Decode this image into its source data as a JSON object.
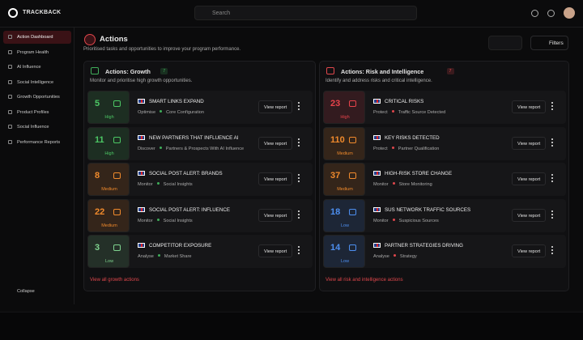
{
  "brand": "TRACKBACK",
  "search": {
    "placeholder": "Search"
  },
  "nav": {
    "items": [
      "Action Dashboard",
      "Program Health",
      "AI Influence",
      "Social Intelligence",
      "Growth Opportunities",
      "Product Profiles",
      "Social Influence",
      "Performance Reports"
    ],
    "active": 0,
    "collapse": "Collapse"
  },
  "header": {
    "title": "Actions",
    "subtitle": "Prioritised tasks and opportunities to improve your program performance.",
    "filters": "Filters"
  },
  "panels": [
    {
      "title": "Actions: Growth",
      "count": 7,
      "description": "Monitor and prioritise high growth opportunities.",
      "accent": "#3fae5a",
      "action": "View report",
      "footer": "View all growth actions",
      "items": [
        {
          "value": 5,
          "level": "High",
          "title": "SMART LINKS EXPAND",
          "category": "Optimise",
          "subcategory": "Core Configuration",
          "color": "#4cc764"
        },
        {
          "value": 11,
          "level": "High",
          "title": "NEW PARTNERS THAT INFLUENCE AI",
          "category": "Discover",
          "subcategory": "Partners & Prospects With AI Influence",
          "color": "#4cc764"
        },
        {
          "value": 8,
          "level": "Medium",
          "title": "SOCIAL POST ALERT: BRANDS",
          "category": "Monitor",
          "subcategory": "Social Insights",
          "color": "#f08a2c"
        },
        {
          "value": 22,
          "level": "Medium",
          "title": "SOCIAL POST ALERT: INFLUENCE",
          "category": "Monitor",
          "subcategory": "Social Insights",
          "color": "#f08a2c"
        },
        {
          "value": 3,
          "level": "Low",
          "title": "COMPETITOR EXPOSURE",
          "category": "Analyse",
          "subcategory": "Market Share",
          "color": "#7fd38f"
        }
      ]
    },
    {
      "title": "Actions: Risk and Intelligence",
      "count": 7,
      "description": "Identify and address risks and critical intelligence.",
      "accent": "#e0474c",
      "action": "View report",
      "footer": "View all risk and intelligence actions",
      "items": [
        {
          "value": 23,
          "level": "High",
          "title": "CRITICAL RISKS",
          "category": "Protect",
          "subcategory": "Traffic Source Detected",
          "color": "#e8434b"
        },
        {
          "value": 110,
          "level": "Medium",
          "title": "KEY RISKS DETECTED",
          "category": "Protect",
          "subcategory": "Partner Qualification",
          "color": "#f08a2c"
        },
        {
          "value": 37,
          "level": "Medium",
          "title": "HIGH-RISK STORE CHANGE",
          "category": "Monitor",
          "subcategory": "Store Monitoring",
          "color": "#f08a2c"
        },
        {
          "value": 18,
          "level": "Low",
          "title": "SUS NETWORK TRAFFIC SOURCES",
          "category": "Monitor",
          "subcategory": "Suspicious Sources",
          "color": "#4d8ff0"
        },
        {
          "value": 14,
          "level": "Low",
          "title": "PARTNER STRATEGIES DRIVING",
          "category": "Analyse",
          "subcategory": "Strategy",
          "color": "#4d8ff0"
        }
      ]
    }
  ]
}
